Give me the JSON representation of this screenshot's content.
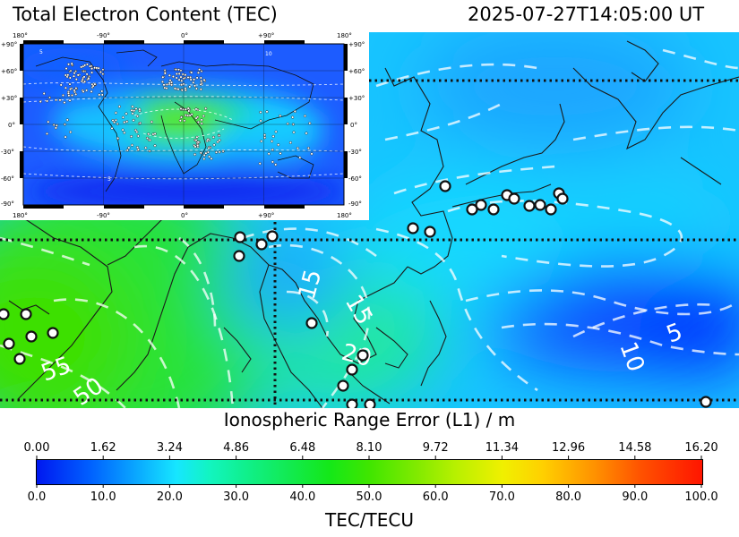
{
  "header": {
    "title": "Total Electron Content (TEC)",
    "timestamp": "2025-07-27T14:05:00 UT"
  },
  "main_map": {
    "contour_labels": [
      "55",
      "50",
      "15",
      "15",
      "20",
      "10",
      "5"
    ]
  },
  "inset": {
    "top_lon_labels": [
      "180°",
      "-90°",
      "0°",
      "+90°",
      "180°"
    ],
    "bottom_lon_labels": [
      "180°",
      "-90°",
      "0°",
      "+90°",
      "180°"
    ],
    "lat_labels": [
      "+90°",
      "+60°",
      "+30°",
      "0°",
      "-30°",
      "-60°",
      "-90°"
    ],
    "contour_labels": [
      "5",
      "10",
      "5"
    ]
  },
  "range_scale": {
    "title": "Ionospheric Range Error (L1) / m",
    "ticks": [
      "0.00",
      "1.62",
      "3.24",
      "4.86",
      "6.48",
      "8.10",
      "9.72",
      "11.34",
      "12.96",
      "14.58",
      "16.20"
    ]
  },
  "tec_scale": {
    "label": "TEC/TECU",
    "ticks": [
      "0.0",
      "10.0",
      "20.0",
      "30.0",
      "40.0",
      "50.0",
      "60.0",
      "70.0",
      "80.0",
      "90.0",
      "100.0"
    ]
  },
  "colors": {
    "low": "#0018f0",
    "mid": "#12ea50",
    "high": "#ff1500"
  }
}
